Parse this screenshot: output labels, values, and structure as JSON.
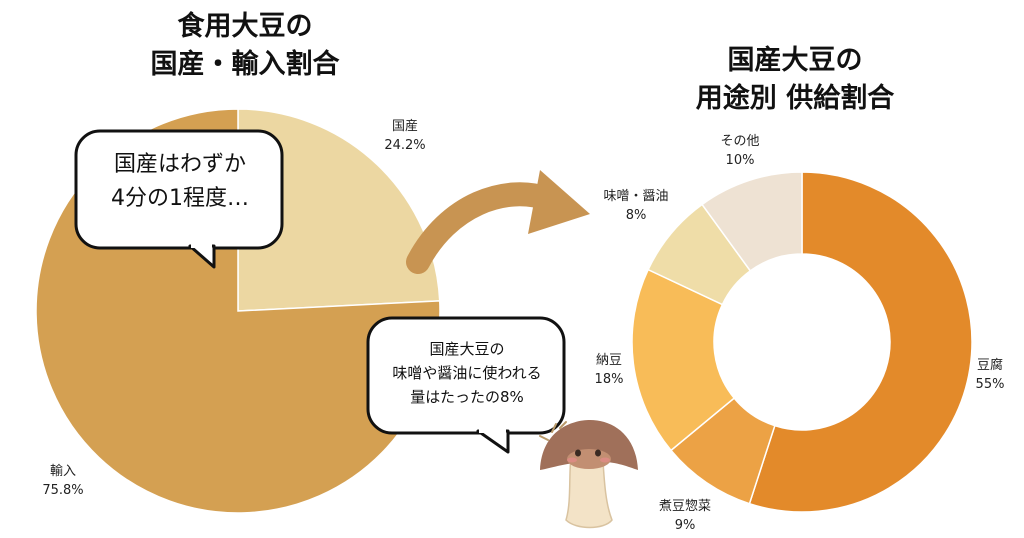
{
  "left_chart": {
    "title_line1": "食用大豆の",
    "title_line2": "国産・輸入割合"
  },
  "right_chart": {
    "title_line1": "国産大豆の",
    "title_line2": "用途別 供給割合"
  },
  "bubble1": {
    "line1": "国産はわずか",
    "line2": "4分の1程度…"
  },
  "bubble2": {
    "line1": "国産大豆の",
    "line2": "味噌や醤油に使われる",
    "line3": "量はたったの8%"
  },
  "chart_data": [
    {
      "type": "pie",
      "title": "食用大豆の 国産・輸入割合",
      "slices": [
        {
          "label": "国産",
          "value": 24.2,
          "value_label": "24.2%",
          "color": "#ecd7a2"
        },
        {
          "label": "輸入",
          "value": 75.8,
          "value_label": "75.8%",
          "color": "#d4a052"
        }
      ]
    },
    {
      "type": "pie",
      "donut": true,
      "title": "国産大豆の 用途別 供給割合",
      "slices": [
        {
          "label": "豆腐",
          "value": 55,
          "value_label": "55%",
          "color": "#e38a2a"
        },
        {
          "label": "煮豆惣菜",
          "value": 9,
          "value_label": "9%",
          "color": "#eca245"
        },
        {
          "label": "納豆",
          "value": 18,
          "value_label": "18%",
          "color": "#f8bc58"
        },
        {
          "label": "味噌・醤油",
          "value": 8,
          "value_label": "8%",
          "color": "#efdda8"
        },
        {
          "label": "その他",
          "value": 10,
          "value_label": "10%",
          "color": "#eee2d3"
        }
      ]
    }
  ]
}
